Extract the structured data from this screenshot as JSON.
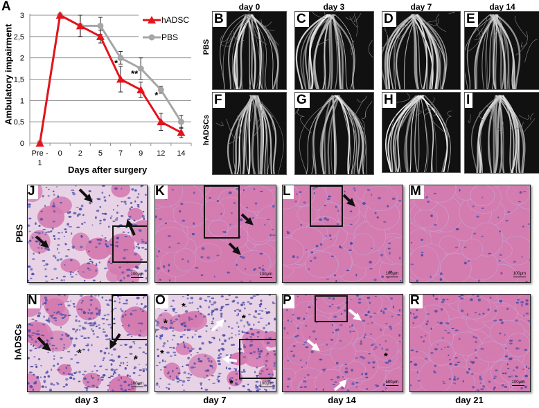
{
  "figure": {
    "panel_letters": {
      "A": "A",
      "B": "B",
      "C": "C",
      "D": "D",
      "E": "E",
      "F": "F",
      "G": "G",
      "H": "H",
      "I": "I",
      "J": "J",
      "K": "K",
      "L": "L",
      "M": "M",
      "N": "N",
      "O": "O",
      "P": "P",
      "R": "R"
    },
    "angiography": {
      "column_titles": [
        "day 0",
        "day 3",
        "day 7",
        "day 14"
      ],
      "row_titles": [
        "PBS",
        "hADSCs"
      ]
    },
    "histology": {
      "row_titles": [
        "PBS",
        "hADSCs"
      ],
      "bottom_labels": [
        "day 3",
        "day 7",
        "day 14",
        "day 21"
      ],
      "scale_bar_label": "100µm",
      "asterisk": "*",
      "colors": {
        "eosin": "#d47bb0",
        "hematoxylin": "#4b4ba8",
        "background": "#e8d3e6"
      }
    }
  },
  "chart_data": {
    "type": "line",
    "title": "",
    "xlabel": "Days after surgery",
    "ylabel": "Ambulatory impairment",
    "categories": [
      "Pre - 1",
      "0",
      "2",
      "5",
      "7",
      "9",
      "12",
      "14"
    ],
    "category_lines": [
      [
        "Pre -",
        "1"
      ],
      [
        "0"
      ],
      [
        "2"
      ],
      [
        "5"
      ],
      [
        "7"
      ],
      [
        "9"
      ],
      [
        "12"
      ],
      [
        "14"
      ]
    ],
    "ylim": [
      0,
      3
    ],
    "yticks": [
      "0",
      "0,5",
      "1",
      "1,5",
      "2",
      "2,5",
      "3"
    ],
    "grid": true,
    "legend_position": "upper right",
    "series": [
      {
        "name": "hADSC",
        "color": "#e3141b",
        "marker": "triangle",
        "values": [
          0,
          3,
          2.75,
          2.5,
          1.5,
          1.25,
          0.5,
          0.25
        ],
        "errors": [
          0,
          0,
          0.25,
          0.15,
          0.3,
          0.18,
          0.2,
          0.12
        ]
      },
      {
        "name": "PBS",
        "color": "#a6a6a6",
        "marker": "circle",
        "values": [
          0,
          3,
          2.75,
          2.75,
          2.0,
          1.75,
          1.25,
          0.5
        ],
        "errors": [
          0,
          0,
          0.25,
          0.2,
          0.15,
          0.25,
          0.08,
          0.15
        ]
      }
    ],
    "annotations": [
      {
        "x": "7",
        "text": "*"
      },
      {
        "x": "9",
        "text": "**"
      },
      {
        "x": "12",
        "text": "*"
      }
    ]
  }
}
